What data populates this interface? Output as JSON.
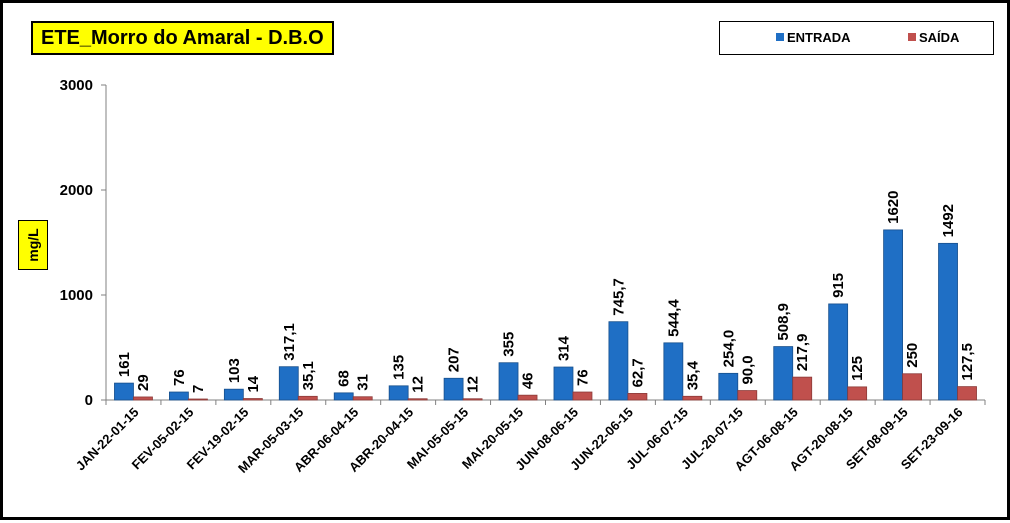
{
  "chart_data": {
    "type": "bar",
    "title": "ETE_Morro do Amaral - D.B.O",
    "ylabel": "mg/L",
    "xlabel": "",
    "ylim": [
      0,
      3000
    ],
    "yticks": [
      0,
      1000,
      2000,
      3000
    ],
    "grid": false,
    "legend_position": "top-right",
    "categories": [
      "JAN-22-01-15",
      "FEV-05-02-15",
      "FEV-19-02-15",
      "MAR-05-03-15",
      "ABR-06-04-15",
      "ABR-20-04-15",
      "MAI-05-05-15",
      "MAI-20-05-15",
      "JUN-08-06-15",
      "JUN-22-06-15",
      "JUL-06-07-15",
      "JUL-20-07-15",
      "AGT-06-08-15",
      "AGT-20-08-15",
      "SET-08-09-15",
      "SET-23-09-16"
    ],
    "series": [
      {
        "name": "ENTRADA",
        "color": "#1f6fc5",
        "values": [
          161,
          76,
          103,
          317.1,
          68,
          135,
          207,
          355,
          314,
          745.7,
          544.4,
          254.0,
          508.9,
          915,
          1620,
          1492
        ],
        "labels": [
          "161",
          "76",
          "103",
          "317,1",
          "68",
          "135",
          "207",
          "355",
          "314",
          "745,7",
          "544,4",
          "254,0",
          "508,9",
          "915",
          "1620",
          "1492"
        ]
      },
      {
        "name": "SAÍDA",
        "color": "#c0504d",
        "values": [
          29,
          7,
          14,
          35.1,
          31,
          12,
          12,
          46,
          76,
          62.7,
          35.4,
          90.0,
          217.9,
          125,
          250,
          127.5
        ],
        "labels": [
          "29",
          "7",
          "14",
          "35,1",
          "31",
          "12",
          "12",
          "46",
          "76",
          "62,7",
          "35,4",
          "90,0",
          "217,9",
          "125",
          "250",
          "127,5"
        ]
      }
    ]
  }
}
